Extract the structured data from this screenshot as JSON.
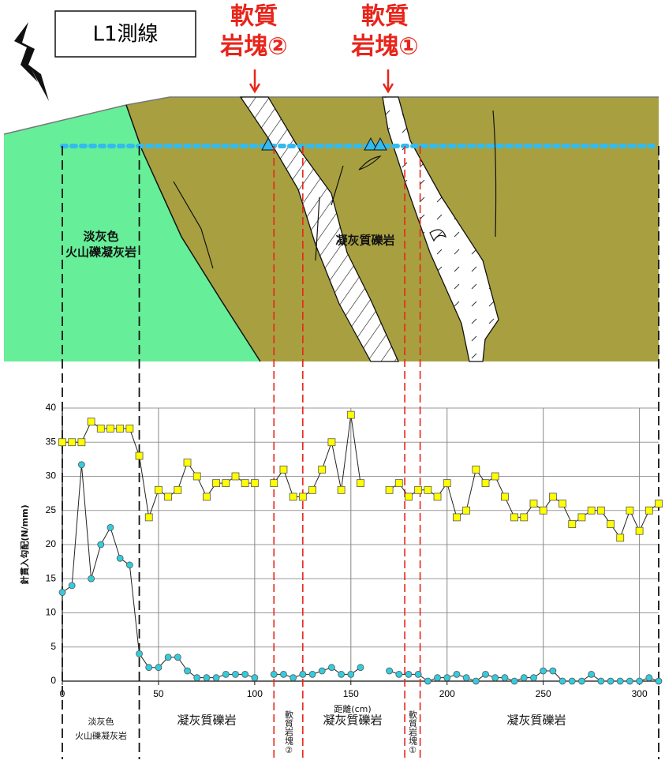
{
  "chart_data": {
    "type": "line",
    "title_box": "L1測線",
    "soft_block_labels": [
      [
        "軟質",
        "岩塊②"
      ],
      [
        "軟質",
        "岩塊①"
      ]
    ],
    "geology_labels": [
      [
        "淡灰色",
        "火山礫凝灰岩"
      ],
      "凝灰質礫岩"
    ],
    "section_labels": [
      [
        "淡灰色",
        "火山礫凝灰岩"
      ],
      "凝灰質礫岩",
      "軟質岩塊②",
      "凝灰質礫岩",
      "軟質岩塊①",
      "凝灰質礫岩"
    ],
    "y_label": "針貫入勾配(N/mm)",
    "x_label": "距離(cm)",
    "section_boundaries": [
      0,
      40,
      310
    ],
    "soft_block_boundaries": [
      110,
      125,
      178,
      186
    ],
    "x": [
      0,
      5,
      10,
      15,
      20,
      25,
      30,
      35,
      40,
      45,
      50,
      55,
      60,
      65,
      70,
      75,
      80,
      85,
      90,
      95,
      100,
      105,
      110,
      115,
      120,
      125,
      130,
      135,
      140,
      145,
      150,
      155,
      160,
      165,
      170,
      175,
      180,
      185,
      190,
      195,
      200,
      205,
      210,
      215,
      220,
      225,
      230,
      235,
      240,
      245,
      250,
      255,
      260,
      265,
      270,
      275,
      280,
      285,
      290,
      295,
      300,
      305,
      310
    ],
    "series": [
      {
        "color": "#ffff00",
        "marker": "square",
        "values": [
          35,
          35,
          35,
          38,
          37,
          37,
          37,
          37,
          33,
          24,
          28,
          27,
          28,
          32,
          30,
          27,
          29,
          29,
          30,
          29,
          29,
          null,
          29,
          31,
          27,
          27,
          28,
          31,
          35,
          28,
          39,
          29,
          null,
          null,
          28,
          29,
          27,
          28,
          28,
          27,
          29,
          24,
          25,
          31,
          29,
          30,
          27,
          24,
          24,
          26,
          25,
          27,
          26,
          23,
          24,
          25,
          25,
          23,
          21,
          25,
          22,
          25,
          26
        ]
      },
      {
        "color": "#33ccdd",
        "marker": "circle",
        "values": [
          13,
          14,
          31.7,
          15,
          20,
          22.5,
          18,
          17,
          4,
          2,
          2,
          3.5,
          3.5,
          1.5,
          0.5,
          0.5,
          0.5,
          1,
          1,
          1,
          0.5,
          null,
          1,
          1,
          0.5,
          1,
          1,
          1.5,
          2,
          1,
          1,
          2,
          null,
          null,
          1.5,
          1,
          1,
          1,
          0,
          0.5,
          0.5,
          1,
          0.5,
          0,
          1,
          0.5,
          0.5,
          0,
          0.5,
          0.5,
          1.5,
          1.5,
          0,
          0,
          0,
          1,
          0,
          0,
          0,
          0,
          0,
          0.5,
          0
        ]
      }
    ],
    "xlim": [
      0,
      310
    ],
    "ylim": [
      0,
      40
    ],
    "xticks": [
      0,
      50,
      100,
      150,
      200,
      250,
      300
    ],
    "yticks": [
      0,
      5,
      10,
      15,
      20,
      25,
      30,
      35,
      40
    ],
    "grid": true
  }
}
